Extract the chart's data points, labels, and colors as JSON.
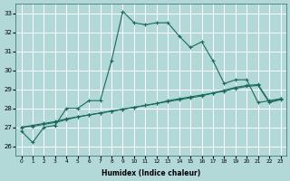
{
  "xlabel": "Humidex (Indice chaleur)",
  "xlim": [
    -0.5,
    23.5
  ],
  "ylim": [
    25.5,
    33.5
  ],
  "yticks": [
    26,
    27,
    28,
    29,
    30,
    31,
    32,
    33
  ],
  "xticks": [
    0,
    1,
    2,
    3,
    4,
    5,
    6,
    7,
    8,
    9,
    10,
    11,
    12,
    13,
    14,
    15,
    16,
    17,
    18,
    19,
    20,
    21,
    22,
    23
  ],
  "xtick_labels": [
    "0",
    "1",
    "2",
    "3",
    "4",
    "5",
    "6",
    "7",
    "8",
    "9",
    "10",
    "11",
    "12",
    "13",
    "14",
    "15",
    "16",
    "17",
    "18",
    "19",
    "20",
    "21",
    "22",
    "23"
  ],
  "bg_color": "#b2d8d8",
  "line_color": "#1a6b5a",
  "grid_color": "#ffffff",
  "line1_x": [
    0,
    1,
    2,
    3,
    4,
    5,
    6,
    7,
    8,
    9,
    10,
    11,
    12,
    13,
    14,
    15,
    16,
    17,
    18,
    19,
    20,
    21,
    22,
    23
  ],
  "line1_y": [
    26.8,
    26.2,
    27.0,
    27.1,
    28.0,
    28.0,
    28.4,
    28.4,
    30.5,
    33.1,
    32.5,
    32.4,
    32.5,
    32.5,
    31.8,
    31.2,
    31.5,
    30.5,
    29.3,
    29.5,
    29.5,
    28.3,
    28.4,
    28.5
  ],
  "line2_x": [
    0,
    1,
    2,
    3,
    4,
    5,
    6,
    7,
    8,
    9,
    10,
    11,
    12,
    13,
    14,
    15,
    16,
    17,
    18,
    19,
    20,
    21,
    22,
    23
  ],
  "line2_y": [
    27.0,
    27.05,
    27.15,
    27.25,
    27.4,
    27.55,
    27.65,
    27.75,
    27.85,
    27.95,
    28.05,
    28.15,
    28.25,
    28.4,
    28.5,
    28.6,
    28.7,
    28.8,
    28.95,
    29.1,
    29.2,
    29.25,
    28.35,
    28.5
  ],
  "line3_x": [
    0,
    1,
    2,
    3,
    4,
    5,
    6,
    7,
    8,
    9,
    10,
    11,
    12,
    13,
    14,
    15,
    16,
    17,
    18,
    19,
    20,
    21,
    22,
    23
  ],
  "line3_y": [
    27.0,
    27.1,
    27.2,
    27.3,
    27.45,
    27.55,
    27.65,
    27.75,
    27.85,
    27.95,
    28.05,
    28.15,
    28.25,
    28.35,
    28.45,
    28.55,
    28.65,
    28.8,
    28.9,
    29.05,
    29.15,
    29.2,
    28.3,
    28.45
  ]
}
